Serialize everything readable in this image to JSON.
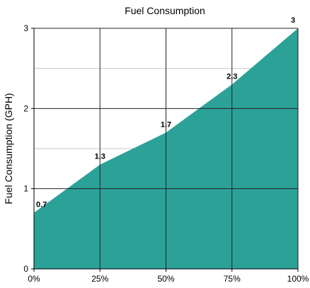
{
  "chart_data": {
    "type": "area",
    "title": "Fuel Consumption",
    "xlabel": "",
    "ylabel": "Fuel Consumption (GPH)",
    "x": [
      0,
      25,
      50,
      75,
      100
    ],
    "x_tick_labels": [
      "0%",
      "25%",
      "50%",
      "75%",
      "100%"
    ],
    "xlim": [
      0,
      100
    ],
    "y_ticks": [
      0,
      1,
      2,
      3
    ],
    "ylim": [
      0,
      3
    ],
    "series": [
      {
        "values": [
          0.7,
          1.3,
          1.7,
          2.3,
          3
        ],
        "data_labels": [
          "0.7",
          "1.3",
          "1.7",
          "2.3",
          "3"
        ],
        "color": "#2ca198"
      }
    ],
    "grid": true,
    "legend": "none"
  }
}
